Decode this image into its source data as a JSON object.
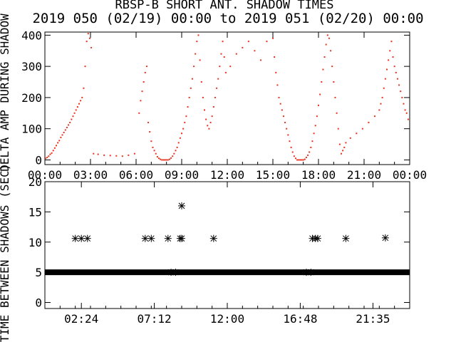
{
  "title": "RBSP-B SHORT ANT. SHADOW TIMES",
  "subtitle": "2019 050 (02/19) 00:00 to 2019 051 (02/20) 00:00",
  "colors": {
    "top_points": "#e8321e",
    "bottom_points": "#000000",
    "axes": "#000000",
    "background": "#ffffff"
  },
  "chart_data": [
    {
      "type": "scatter",
      "ylabel": "DELTA AMP DURING SHADOW",
      "xlim": [
        0,
        24
      ],
      "ylim": [
        -15,
        410
      ],
      "yticks": [
        0,
        100,
        200,
        300,
        400
      ],
      "xtick_labels": [
        "00:00",
        "03:00",
        "06:00",
        "09:00",
        "12:00",
        "15:00",
        "18:00",
        "21:00",
        "00:00"
      ],
      "xtick_hours": [
        0,
        3,
        6,
        9,
        12,
        15,
        18,
        21,
        24
      ],
      "grid": false,
      "series": [
        {
          "x": [
            0.05,
            0.15,
            0.25,
            0.35,
            0.45,
            0.55,
            0.65,
            0.75,
            0.85,
            0.95,
            1.05,
            1.15,
            1.25,
            1.35,
            1.45,
            1.55,
            1.65,
            1.75,
            1.85,
            1.95,
            2.05,
            2.15,
            2.25,
            2.35,
            2.45,
            2.55,
            2.65,
            2.75,
            2.85,
            2.95,
            3.05,
            3.2,
            3.5,
            3.9,
            4.3,
            4.7,
            5.1,
            5.5,
            5.9,
            6.2,
            6.3,
            6.4,
            6.5,
            6.6,
            6.7,
            6.8,
            6.9,
            7.0,
            7.1,
            7.2,
            7.3,
            7.4,
            7.5,
            7.6,
            7.7,
            7.8,
            7.9,
            8.0,
            8.1,
            8.2,
            8.3,
            8.4,
            8.5,
            8.6,
            8.7,
            8.8,
            8.9,
            9.0,
            9.1,
            9.2,
            9.3,
            9.4,
            9.5,
            9.6,
            9.7,
            9.8,
            9.9,
            10.0,
            10.1,
            10.2,
            10.3,
            10.4,
            10.5,
            10.6,
            10.7,
            10.8,
            10.9,
            11.0,
            11.1,
            11.2,
            11.3,
            11.4,
            11.5,
            11.6,
            11.7,
            11.8,
            11.9,
            12.2,
            12.6,
            13.0,
            13.4,
            13.8,
            14.2,
            14.6,
            15.0,
            15.1,
            15.2,
            15.3,
            15.4,
            15.5,
            15.6,
            15.7,
            15.8,
            15.9,
            16.0,
            16.1,
            16.2,
            16.3,
            16.4,
            16.5,
            16.6,
            16.7,
            16.8,
            16.9,
            17.0,
            17.1,
            17.2,
            17.3,
            17.4,
            17.5,
            17.6,
            17.7,
            17.8,
            17.9,
            18.0,
            18.1,
            18.2,
            18.3,
            18.4,
            18.5,
            18.6,
            18.7,
            18.8,
            18.9,
            19.0,
            19.1,
            19.2,
            19.3,
            19.4,
            19.5,
            19.6,
            19.7,
            19.8,
            20.1,
            20.5,
            20.9,
            21.3,
            21.7,
            22.0,
            22.1,
            22.2,
            22.3,
            22.4,
            22.5,
            22.6,
            22.7,
            22.8,
            22.9,
            23.0,
            23.1,
            23.2,
            23.3,
            23.4,
            23.5,
            23.6,
            23.7,
            23.8,
            23.9
          ],
          "y": [
            5,
            8,
            12,
            18,
            22,
            30,
            38,
            46,
            55,
            62,
            72,
            80,
            88,
            96,
            104,
            112,
            120,
            130,
            140,
            150,
            160,
            170,
            180,
            190,
            200,
            230,
            300,
            380,
            405,
            390,
            360,
            20,
            18,
            15,
            14,
            13,
            12,
            15,
            20,
            150,
            190,
            220,
            250,
            280,
            300,
            120,
            90,
            60,
            40,
            30,
            20,
            10,
            5,
            2,
            0,
            0,
            0,
            0,
            0,
            2,
            6,
            12,
            20,
            30,
            40,
            55,
            70,
            85,
            100,
            120,
            140,
            170,
            200,
            230,
            260,
            300,
            340,
            380,
            400,
            320,
            250,
            200,
            160,
            130,
            110,
            100,
            120,
            140,
            170,
            200,
            230,
            260,
            300,
            340,
            380,
            330,
            280,
            300,
            340,
            360,
            380,
            350,
            320,
            380,
            390,
            330,
            280,
            240,
            200,
            180,
            160,
            140,
            120,
            100,
            80,
            60,
            40,
            25,
            12,
            5,
            0,
            0,
            0,
            0,
            0,
            2,
            8,
            15,
            25,
            40,
            60,
            85,
            110,
            140,
            175,
            210,
            250,
            290,
            330,
            370,
            400,
            390,
            350,
            300,
            250,
            200,
            150,
            100,
            50,
            20,
            30,
            40,
            55,
            70,
            85,
            100,
            120,
            140,
            160,
            180,
            200,
            230,
            260,
            290,
            320,
            350,
            380,
            330,
            300,
            280,
            260,
            240,
            220,
            200,
            180,
            160,
            150,
            130
          ]
        }
      ]
    },
    {
      "type": "scatter",
      "ylabel": "TIME BETWEEN SHADOWS (SEC)",
      "xlim": [
        0,
        24
      ],
      "ylim": [
        -1,
        20
      ],
      "yticks": [
        0,
        5,
        10,
        15,
        20
      ],
      "xtick_labels": [
        "02:24",
        "07:12",
        "12:00",
        "16:48",
        "21:35"
      ],
      "xtick_hours": [
        2.4,
        7.2,
        12.0,
        16.8,
        21.583
      ],
      "grid": false,
      "series": [
        {
          "x": [
            2.0,
            2.4,
            2.8,
            6.6,
            7.0,
            8.1,
            8.9,
            9.0,
            11.1,
            17.6,
            17.8,
            17.95,
            19.8,
            22.4,
            9.0,
            8.3,
            8.6,
            17.2,
            17.5
          ],
          "y": [
            10.6,
            10.6,
            10.6,
            10.6,
            10.6,
            10.6,
            10.6,
            10.6,
            10.6,
            10.6,
            10.6,
            10.6,
            10.6,
            10.7,
            16.0,
            5.0,
            5.0,
            5.0,
            5.0
          ]
        }
      ]
    }
  ]
}
